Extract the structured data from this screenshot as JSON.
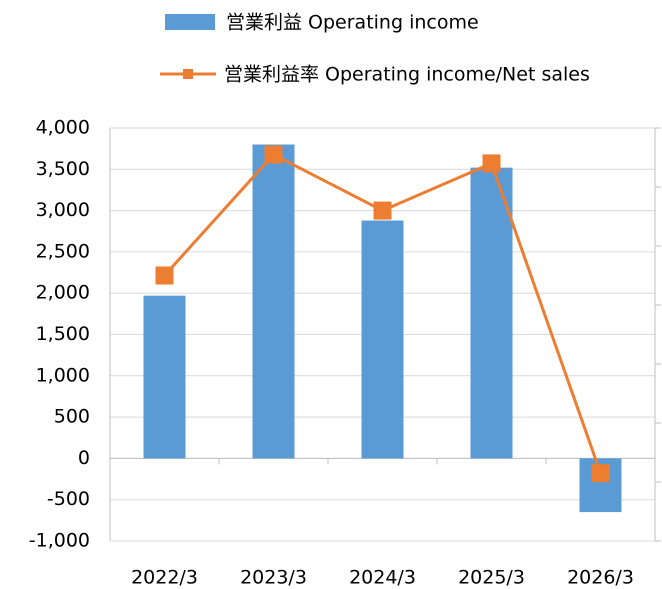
{
  "chart_data": {
    "type": "bar_line",
    "categories": [
      "2022/3",
      "2023/3",
      "2024/3",
      "2025/3",
      "2026/3"
    ],
    "series": [
      {
        "name": "営業利益 Operating income",
        "color": "#5b9bd5",
        "type": "bar",
        "values": [
          1970,
          3800,
          2880,
          3520,
          -650
        ]
      },
      {
        "name": "営業利益率 Operating income/Net sales",
        "color": "#ed7d31",
        "type": "line",
        "axis": "y2",
        "values": [
          5.0,
          9.1,
          7.2,
          8.8,
          -1.7
        ]
      }
    ],
    "ylim": [
      -1000,
      4000
    ],
    "yticks": [
      {
        "value": -1000,
        "label": "-1,000"
      },
      -500,
      0,
      500,
      {
        "value": 1000,
        "label": "1,000"
      },
      {
        "value": 1500,
        "label": "1,500"
      },
      {
        "value": 2000,
        "label": "2,000"
      },
      {
        "value": 2500,
        "label": "2,500"
      },
      {
        "value": 3000,
        "label": "3,000"
      },
      {
        "value": 3500,
        "label": "3,500"
      },
      {
        "value": 4000,
        "label": "4,000"
      }
    ],
    "y2lim": [
      -4,
      10
    ],
    "y2ticks": [
      -4,
      -2,
      0,
      2,
      4,
      6,
      8,
      10
    ],
    "grid": true
  }
}
